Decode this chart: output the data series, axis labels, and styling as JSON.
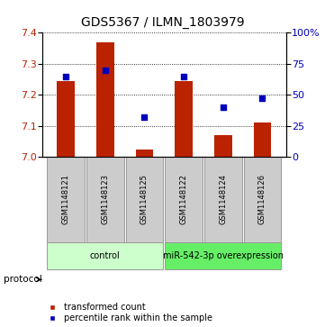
{
  "title": "GDS5367 / ILMN_1803979",
  "samples": [
    "GSM1148121",
    "GSM1148123",
    "GSM1148125",
    "GSM1148122",
    "GSM1148124",
    "GSM1148126"
  ],
  "bar_values": [
    7.245,
    7.37,
    7.025,
    7.245,
    7.07,
    7.11
  ],
  "bar_base": 7.0,
  "percentile_values": [
    65,
    70,
    32,
    65,
    40,
    47
  ],
  "ylim_left": [
    7.0,
    7.4
  ],
  "ylim_right": [
    0,
    100
  ],
  "yticks_left": [
    7.0,
    7.1,
    7.2,
    7.3,
    7.4
  ],
  "yticks_right": [
    0,
    25,
    50,
    75,
    100
  ],
  "bar_color": "#bb2200",
  "dot_color": "#0000bb",
  "protocol_groups": [
    {
      "label": "control",
      "start": 0,
      "end": 3,
      "color": "#ccffcc"
    },
    {
      "label": "miR-542-3p overexpression",
      "start": 3,
      "end": 6,
      "color": "#66ee66"
    }
  ],
  "legend_bar_label": "transformed count",
  "legend_dot_label": "percentile rank within the sample",
  "protocol_label": "protocol",
  "title_fontsize": 10,
  "tick_fontsize": 8,
  "sample_fontsize": 6,
  "proto_fontsize": 7,
  "legend_fontsize": 7
}
